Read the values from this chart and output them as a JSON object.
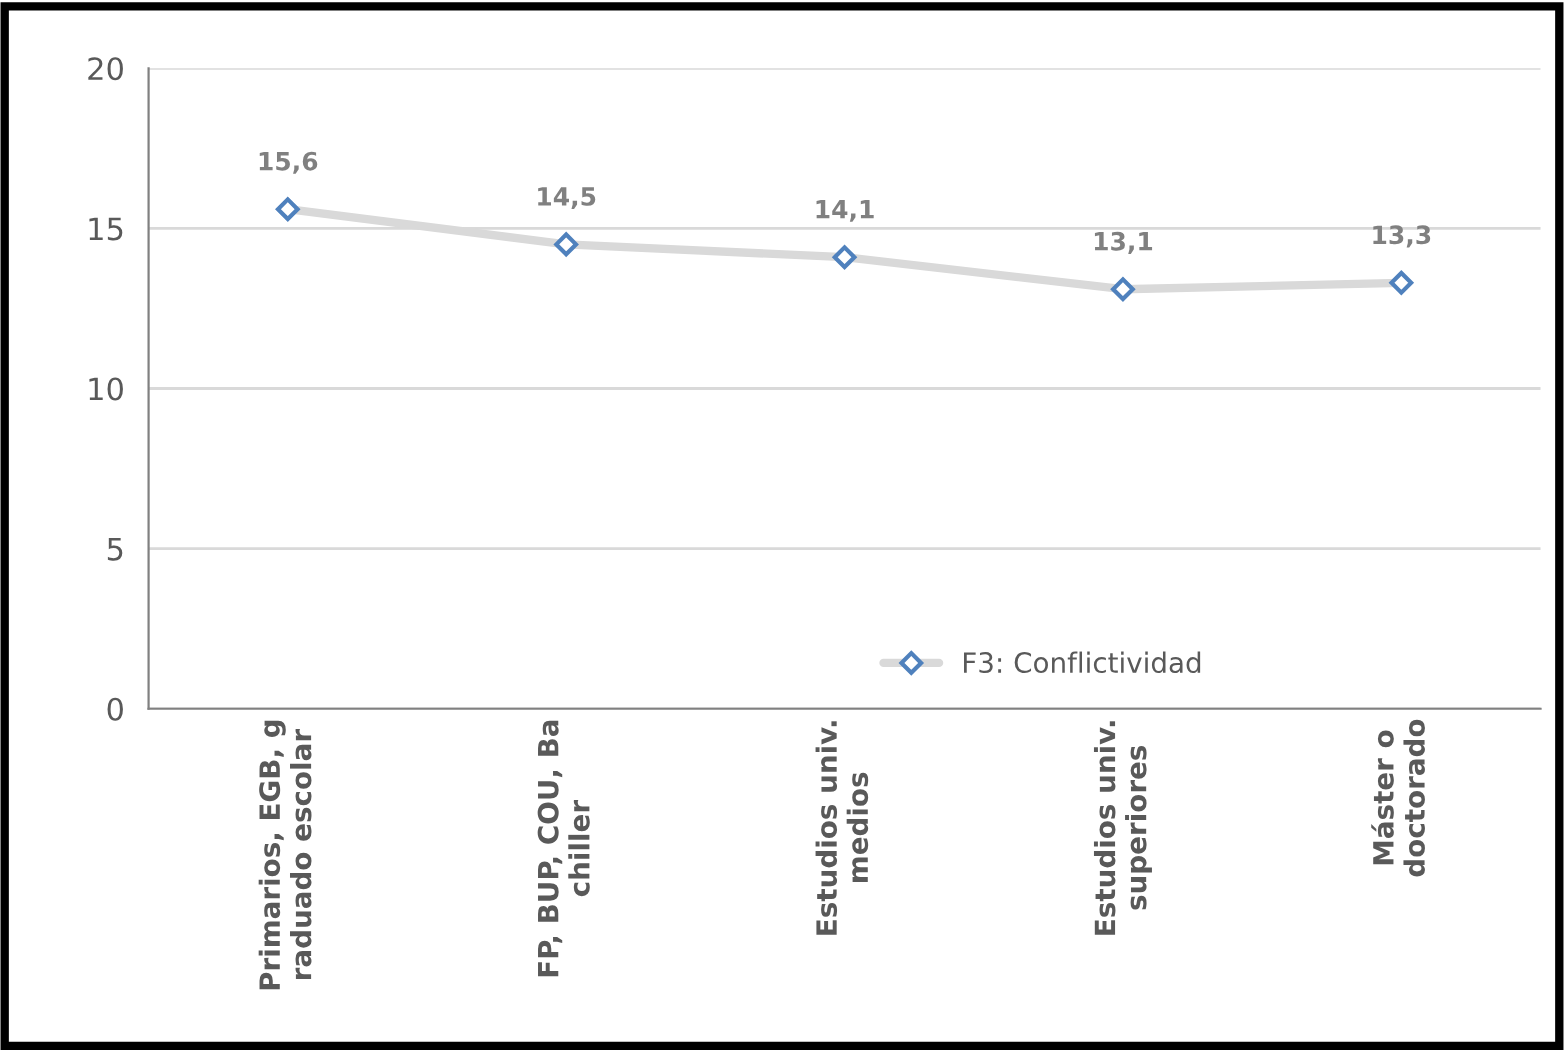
{
  "chart_data": {
    "type": "line",
    "categories": [
      "Primarios, EGB, g\nraduado escolar",
      "FP, BUP, COU, Ba\nchiller",
      "Estudios univ.\nmedios",
      "Estudios univ.\nsuperiores",
      "Máster o\ndoctorado"
    ],
    "series": [
      {
        "name": "F3: Conflictividad",
        "color": "#d9d9d9",
        "values": [
          15.6,
          14.5,
          14.1,
          13.1,
          13.3
        ],
        "value_labels": [
          "15,6",
          "14,5",
          "14,1",
          "13,1",
          "13,3"
        ]
      }
    ],
    "ylim": [
      0,
      20
    ],
    "yticks": [
      0,
      5,
      10,
      15,
      20
    ],
    "grid": "y",
    "legend": "bottom right",
    "marker": "diamond",
    "line_style": "solid"
  }
}
